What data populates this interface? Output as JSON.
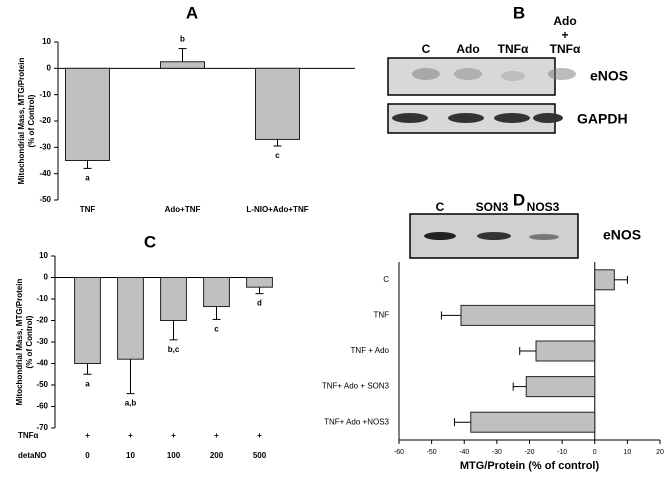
{
  "chart_data": [
    {
      "type": "bar",
      "panel": "A",
      "ylabel": [
        "Mitochondrial Mass, MTG/Protein",
        "(% of Control)"
      ],
      "categories": [
        "TNF",
        "Ado+TNF",
        "L-NIO+Ado+TNF"
      ],
      "values": [
        -35,
        2.5,
        -27
      ],
      "errors": [
        3,
        5,
        2.5
      ],
      "annotations": [
        "a",
        "b",
        "c"
      ],
      "color": "#c0c0c0",
      "ylim": [
        -50,
        10
      ],
      "yticks": [
        -50,
        -40,
        -30,
        -20,
        -10,
        0,
        10
      ]
    },
    {
      "type": "bar",
      "panel": "C",
      "ylabel": [
        "Mitochondrial Mass, MTG/Protein",
        "(% of Control)"
      ],
      "categories": [
        "0",
        "10",
        "100",
        "200",
        "500"
      ],
      "table": [
        {
          "name": "TNFα",
          "cells": [
            "+",
            "+",
            "+",
            "+",
            "+"
          ]
        },
        {
          "name": "detaNO",
          "cells": [
            "0",
            "10",
            "100",
            "200",
            "500"
          ]
        }
      ],
      "values": [
        -40,
        -38,
        -20,
        -13.5,
        -4.5
      ],
      "errors": [
        5,
        16,
        9,
        6,
        3
      ],
      "annotations": [
        "a",
        "a,b",
        "b,c",
        "c",
        "d"
      ],
      "color": "#c0c0c0",
      "ylim": [
        -70,
        10
      ],
      "yticks": [
        -70,
        -60,
        -50,
        -40,
        -30,
        -20,
        -10,
        0,
        10
      ]
    },
    {
      "type": "hbar",
      "panel": "D",
      "xlabel": "MTG/Protein (% of control)",
      "categories": [
        "C",
        "TNF",
        "TNF + Ado",
        "TNF+ Ado + SON3",
        "TNF+ Ado +NOS3"
      ],
      "values": [
        6,
        -41,
        -18,
        -21,
        -38
      ],
      "errors": [
        4,
        6,
        5,
        4,
        5
      ],
      "color": "#c0c0c0",
      "xlim": [
        -60,
        20
      ],
      "xticks": [
        -60,
        -50,
        -40,
        -30,
        -20,
        -10,
        0,
        10,
        20
      ]
    }
  ],
  "blots": [
    {
      "panel": "B",
      "lanes": [
        "C",
        "Ado",
        "TNFα",
        [
          "Ado",
          "+",
          "TNFα"
        ]
      ],
      "rows": [
        "eNOS",
        "GAPDH"
      ]
    },
    {
      "lanes": [
        "C",
        "SON3",
        "NOS3"
      ],
      "rows": [
        "eNOS"
      ]
    }
  ]
}
